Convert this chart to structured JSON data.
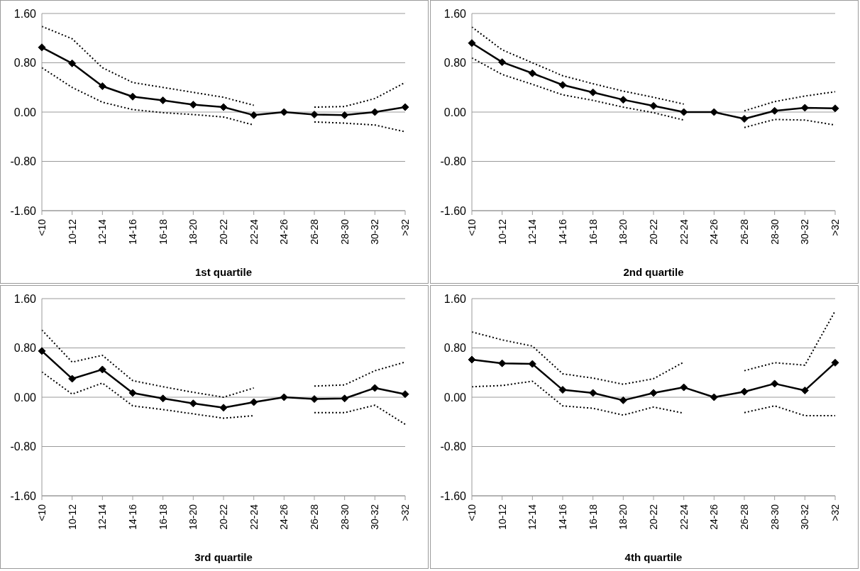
{
  "chart_data": [
    {
      "type": "line",
      "xlabel": "1st quartile",
      "categories": [
        "<10",
        "10-12",
        "12-14",
        "14-16",
        "16-18",
        "18-20",
        "20-22",
        "22-24",
        "24-26",
        "26-28",
        "28-30",
        "30-32",
        ">32"
      ],
      "ylim": [
        -1.6,
        1.6
      ],
      "yticks": [
        {
          "value": -1.6,
          "label": "-1.60"
        },
        {
          "value": -0.8,
          "label": "-0.80"
        },
        {
          "value": 0,
          "label": "0.00"
        },
        {
          "value": 0.8,
          "label": "0.80"
        },
        {
          "value": 1.6,
          "label": "1.60"
        }
      ],
      "grid": "y",
      "legend": false,
      "series": [
        {
          "color": "#000000",
          "marker": "diamond",
          "line_style": "solid",
          "values": [
            1.05,
            0.79,
            0.42,
            0.25,
            0.19,
            0.12,
            0.08,
            -0.05,
            0,
            -0.04,
            -0.05,
            0,
            0.08
          ]
        },
        {
          "color": "#000000",
          "marker": "none",
          "line_style": "dotted",
          "values": [
            1.39,
            1.19,
            0.72,
            0.48,
            0.4,
            0.32,
            0.24,
            0.11,
            null,
            0.08,
            0.09,
            0.22,
            0.48
          ]
        },
        {
          "color": "#000000",
          "marker": "none",
          "line_style": "dotted",
          "values": [
            0.72,
            0.4,
            0.16,
            0.04,
            -0.01,
            -0.04,
            -0.08,
            -0.21,
            null,
            -0.16,
            -0.18,
            -0.21,
            -0.32
          ]
        }
      ]
    },
    {
      "type": "line",
      "xlabel": "2nd quartile",
      "categories": [
        "<10",
        "10-12",
        "12-14",
        "14-16",
        "16-18",
        "18-20",
        "20-22",
        "22-24",
        "24-26",
        "26-28",
        "28-30",
        "30-32",
        ">32"
      ],
      "ylim": [
        -1.6,
        1.6
      ],
      "yticks": [
        {
          "value": -1.6,
          "label": "-1.60"
        },
        {
          "value": -0.8,
          "label": "-0.80"
        },
        {
          "value": 0,
          "label": "0.00"
        },
        {
          "value": 0.8,
          "label": "0.80"
        },
        {
          "value": 1.6,
          "label": "1.60"
        }
      ],
      "grid": "y",
      "legend": false,
      "series": [
        {
          "color": "#000000",
          "marker": "diamond",
          "line_style": "solid",
          "values": [
            1.12,
            0.81,
            0.63,
            0.44,
            0.32,
            0.2,
            0.1,
            0,
            0,
            -0.11,
            0.02,
            0.07,
            0.06
          ]
        },
        {
          "color": "#000000",
          "marker": "none",
          "line_style": "dotted",
          "values": [
            1.38,
            1.01,
            0.8,
            0.59,
            0.46,
            0.34,
            0.24,
            0.13,
            null,
            0.02,
            0.17,
            0.26,
            0.33
          ]
        },
        {
          "color": "#000000",
          "marker": "none",
          "line_style": "dotted",
          "values": [
            0.88,
            0.61,
            0.45,
            0.28,
            0.19,
            0.08,
            -0.01,
            -0.13,
            null,
            -0.25,
            -0.12,
            -0.13,
            -0.21
          ]
        }
      ]
    },
    {
      "type": "line",
      "xlabel": "3rd quartile",
      "categories": [
        "<10",
        "10-12",
        "12-14",
        "14-16",
        "16-18",
        "18-20",
        "20-22",
        "22-24",
        "24-26",
        "26-28",
        "28-30",
        "30-32",
        ">32"
      ],
      "ylim": [
        -1.6,
        1.6
      ],
      "yticks": [
        {
          "value": -1.6,
          "label": "-1.60"
        },
        {
          "value": -0.8,
          "label": "-0.80"
        },
        {
          "value": 0,
          "label": "0.00"
        },
        {
          "value": 0.8,
          "label": "0.80"
        },
        {
          "value": 1.6,
          "label": "1.60"
        }
      ],
      "grid": "y",
      "legend": false,
      "series": [
        {
          "color": "#000000",
          "marker": "diamond",
          "line_style": "solid",
          "values": [
            0.75,
            0.3,
            0.45,
            0.07,
            -0.02,
            -0.1,
            -0.17,
            -0.08,
            0,
            -0.03,
            -0.02,
            0.15,
            0.05
          ]
        },
        {
          "color": "#000000",
          "marker": "none",
          "line_style": "dotted",
          "values": [
            1.09,
            0.57,
            0.68,
            0.27,
            0.17,
            0.08,
            0,
            0.15,
            null,
            0.18,
            0.2,
            0.43,
            0.57
          ]
        },
        {
          "color": "#000000",
          "marker": "none",
          "line_style": "dotted",
          "values": [
            0.41,
            0.05,
            0.23,
            -0.14,
            -0.2,
            -0.27,
            -0.34,
            -0.3,
            null,
            -0.25,
            -0.25,
            -0.13,
            -0.44
          ]
        }
      ]
    },
    {
      "type": "line",
      "xlabel": "4th quartile",
      "categories": [
        "<10",
        "10-12",
        "12-14",
        "14-16",
        "16-18",
        "18-20",
        "20-22",
        "22-24",
        "24-26",
        "26-28",
        "28-30",
        "30-32",
        ">32"
      ],
      "ylim": [
        -1.6,
        1.6
      ],
      "yticks": [
        {
          "value": -1.6,
          "label": "-1.60"
        },
        {
          "value": -0.8,
          "label": "-0.80"
        },
        {
          "value": 0,
          "label": "0.00"
        },
        {
          "value": 0.8,
          "label": "0.80"
        },
        {
          "value": 1.6,
          "label": "1.60"
        }
      ],
      "grid": "y",
      "legend": false,
      "series": [
        {
          "color": "#000000",
          "marker": "diamond",
          "line_style": "solid",
          "values": [
            0.61,
            0.55,
            0.54,
            0.12,
            0.07,
            -0.05,
            0.07,
            0.16,
            0,
            0.09,
            0.22,
            0.11,
            0.56
          ]
        },
        {
          "color": "#000000",
          "marker": "none",
          "line_style": "dotted",
          "values": [
            1.06,
            0.93,
            0.83,
            0.38,
            0.31,
            0.21,
            0.3,
            0.57,
            null,
            0.43,
            0.56,
            0.52,
            1.4
          ]
        },
        {
          "color": "#000000",
          "marker": "none",
          "line_style": "dotted",
          "values": [
            0.17,
            0.19,
            0.26,
            -0.14,
            -0.18,
            -0.29,
            -0.16,
            -0.26,
            null,
            -0.25,
            -0.14,
            -0.3,
            -0.3
          ]
        }
      ]
    }
  ]
}
